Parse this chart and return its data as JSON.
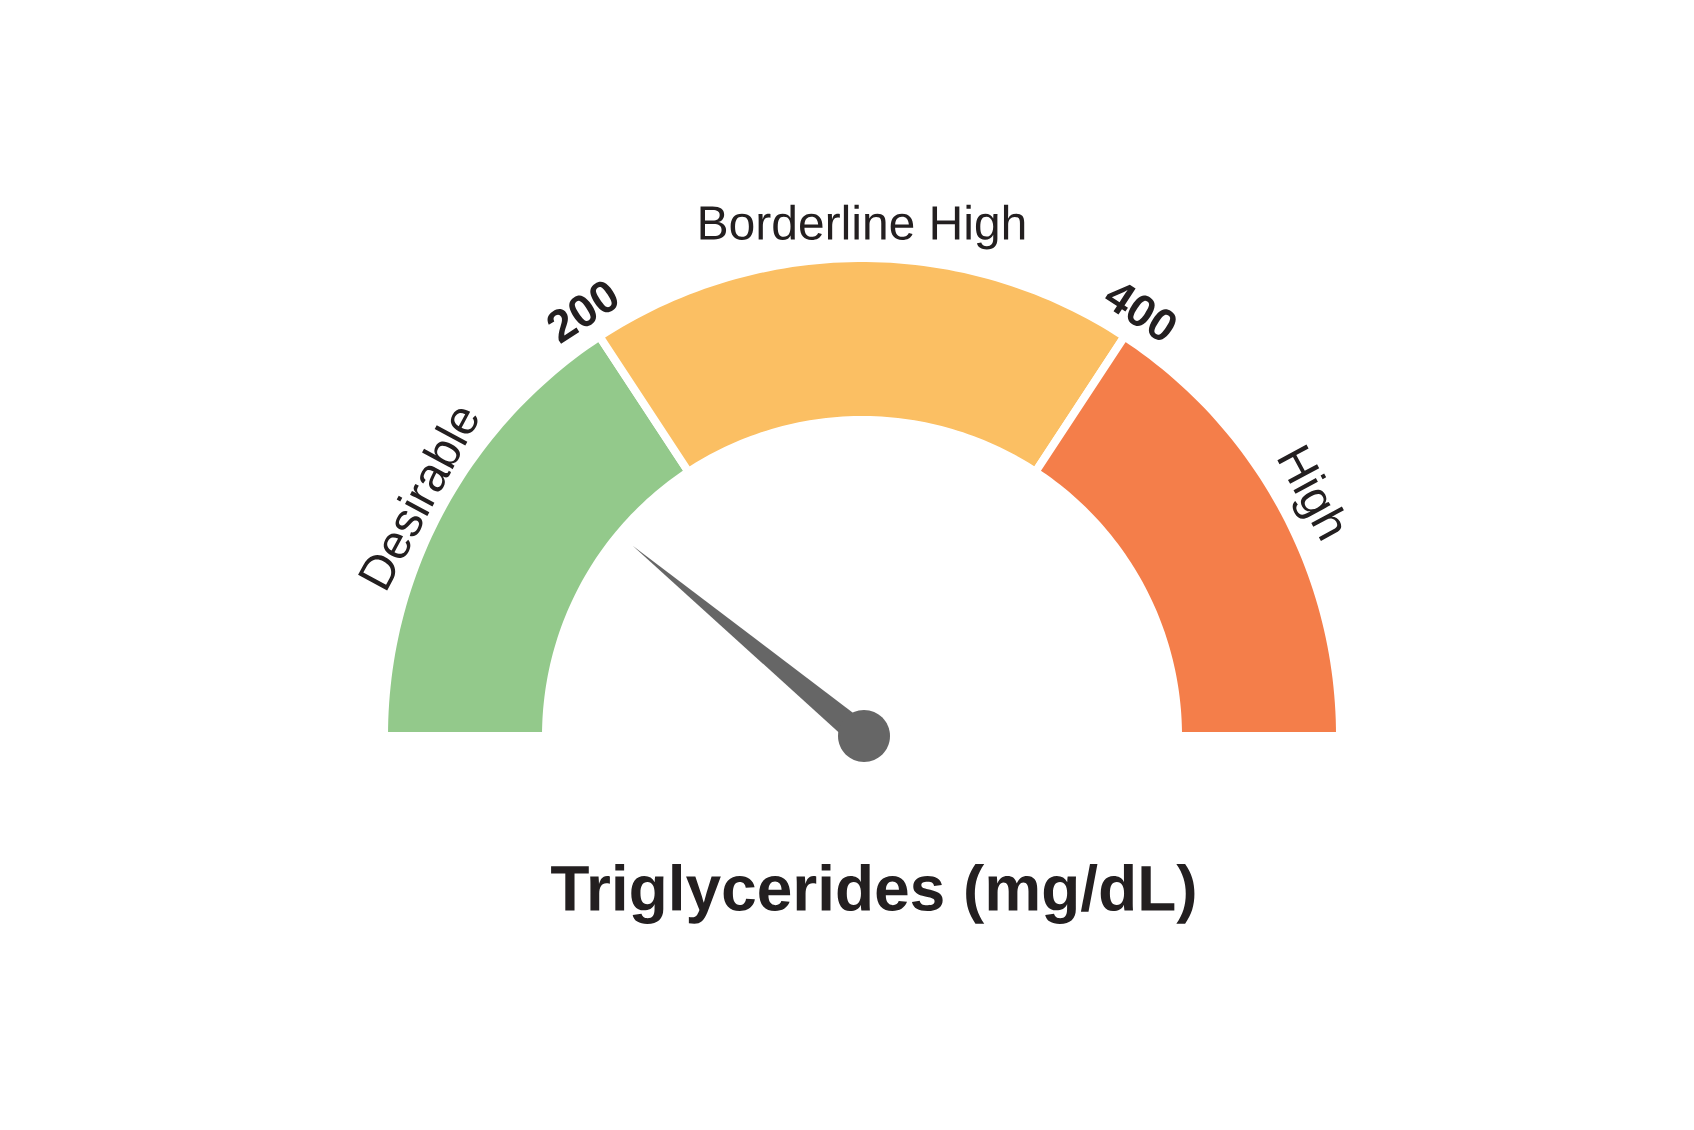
{
  "chart_data": {
    "type": "donut",
    "title": "Triglycerides (mg/dL)",
    "categories": [
      "Desirable",
      "Borderline High",
      "High"
    ],
    "values": [
      31.5,
      37,
      31.5
    ],
    "colors": [
      "#93c98b",
      "#fbbf63",
      "#f47e4a"
    ],
    "needle": "Desirable",
    "annotations": [
      "200",
      "400"
    ]
  }
}
